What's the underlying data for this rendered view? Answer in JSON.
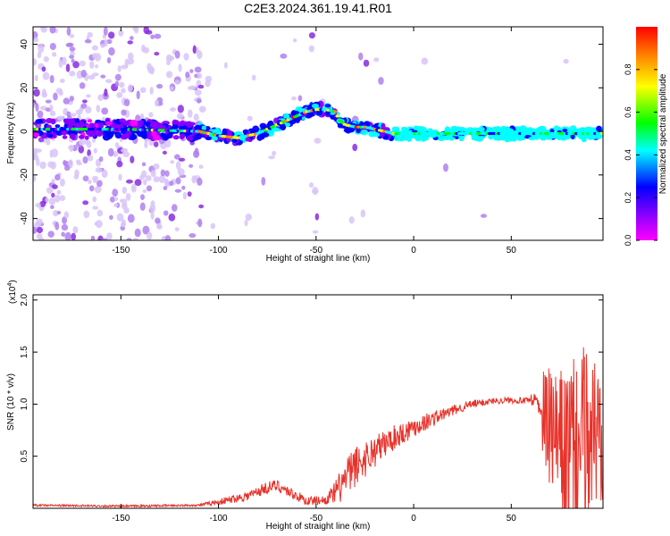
{
  "title": "C2E3.2024.361.19.41.R01",
  "chart_data": [
    {
      "type": "heatmap",
      "xlabel": "Height of straight line (km)",
      "ylabel": "Frequency (Hz)",
      "xlim": [
        -195,
        97
      ],
      "ylim": [
        -50,
        48
      ],
      "xticks": [
        -150,
        -100,
        -50,
        0,
        50
      ],
      "yticks": [
        -40,
        -20,
        0,
        20,
        40
      ],
      "colorbar": {
        "label": "Normalized spectral amplitude",
        "range": [
          0,
          1
        ],
        "ticks": [
          "0.0",
          "0.2",
          "0.4",
          "0.6",
          "0.8"
        ],
        "colors": [
          "#ff00ff",
          "#8800ff",
          "#0000ff",
          "#00ffff",
          "#00ff00",
          "#ffff00",
          "#ff8800",
          "#ff0000"
        ]
      },
      "ridge": {
        "x": [
          -195,
          -150,
          -110,
          -100,
          -90,
          -80,
          -70,
          -60,
          -55,
          -50,
          -45,
          -40,
          -38,
          -35,
          -30,
          -25,
          -20,
          -15,
          -10,
          -5,
          0,
          10,
          20,
          30,
          40,
          50,
          60,
          70,
          80,
          90,
          97
        ],
        "y": [
          1,
          1,
          0,
          -2,
          -3,
          -1,
          3,
          7,
          9,
          10,
          10,
          9,
          5,
          3,
          2,
          2,
          1,
          0,
          -1,
          -1,
          -1,
          -1,
          -1,
          -1,
          -1,
          -1,
          -1,
          -1,
          -1,
          -1,
          -1
        ]
      }
    },
    {
      "type": "line",
      "xlabel": "Height of straight line (km)",
      "ylabel": "SNR (10 * v/v)",
      "y_multiplier": "(x10",
      "y_multiplier_exp": "4",
      "xlim": [
        -195,
        97
      ],
      "ylim": [
        0,
        2.05
      ],
      "xticks": [
        -150,
        -100,
        -50,
        0,
        50
      ],
      "yticks": [
        "0.5",
        "1.0",
        "1.5",
        "2.0"
      ],
      "color": "#e8322a",
      "envelope": {
        "x": [
          -195,
          -150,
          -110,
          -100,
          -85,
          -75,
          -70,
          -60,
          -55,
          -45,
          -40,
          -30,
          -20,
          -10,
          0,
          10,
          20,
          30,
          40,
          50,
          60,
          63,
          66,
          70,
          75,
          80,
          85,
          90,
          97
        ],
        "y": [
          0.03,
          0.02,
          0.03,
          0.06,
          0.12,
          0.2,
          0.22,
          0.12,
          0.07,
          0.08,
          0.15,
          0.4,
          0.55,
          0.68,
          0.78,
          0.86,
          0.94,
          1.0,
          1.03,
          1.04,
          1.03,
          1.03,
          0.9,
          0.75,
          0.6,
          0.55,
          0.6,
          0.7,
          0.75
        ]
      },
      "noise": {
        "x": [
          -195,
          -110,
          -100,
          -75,
          -60,
          -45,
          -40,
          -35,
          -30,
          -20,
          -10,
          0,
          20,
          40,
          60,
          63,
          66,
          75,
          85,
          90,
          97
        ],
        "y": [
          0.01,
          0.01,
          0.03,
          0.06,
          0.05,
          0.04,
          0.12,
          0.2,
          0.2,
          0.16,
          0.12,
          0.1,
          0.05,
          0.03,
          0.03,
          0.08,
          0.3,
          0.45,
          0.6,
          0.55,
          0.5
        ]
      }
    }
  ]
}
